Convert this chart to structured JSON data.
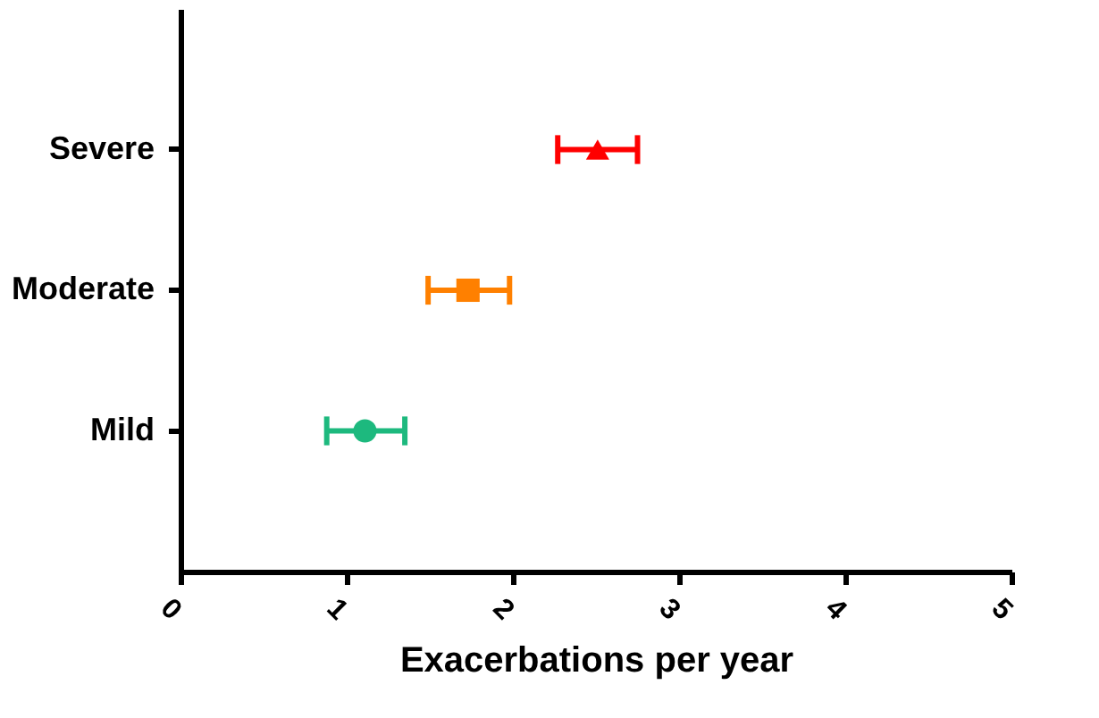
{
  "chart_data": {
    "type": "scatter",
    "orientation": "horizontal",
    "xlabel": "Exacerbations per year",
    "categories": [
      "Severe",
      "Moderate",
      "Mild"
    ],
    "series": [
      {
        "color": "#ff0000",
        "marker": "triangle",
        "values": [
          2.51,
          null,
          null
        ],
        "errors": [
          [
            2.27,
            2.75
          ],
          null,
          null
        ]
      },
      {
        "color": "#ff8000",
        "marker": "square",
        "values": [
          null,
          1.73,
          null
        ],
        "errors": [
          null,
          [
            1.49,
            1.98
          ],
          null
        ]
      },
      {
        "color": "#1db97e",
        "marker": "circle",
        "values": [
          null,
          null,
          1.11
        ],
        "errors": [
          null,
          null,
          [
            0.88,
            1.35
          ]
        ]
      }
    ],
    "xlim": [
      0,
      5
    ],
    "xticks": [
      0,
      1,
      2,
      3,
      4,
      5
    ],
    "grid": false
  }
}
